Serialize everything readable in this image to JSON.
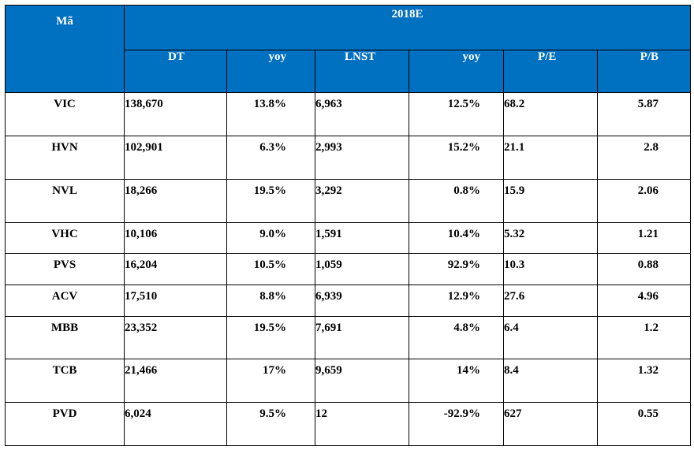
{
  "table": {
    "header": {
      "ma": "Mã",
      "year": "2018E",
      "columns": [
        "DT",
        "yoy",
        "LNST",
        "yoy",
        "P/E",
        "P/B"
      ]
    },
    "rows": [
      {
        "code": "VIC",
        "dt": "138,670",
        "yoy_dt": "13.8%",
        "lnst": "6,963",
        "yoy_lnst": "12.5%",
        "pe": "68.2",
        "pb": "5.87"
      },
      {
        "code": "HVN",
        "dt": "102,901",
        "yoy_dt": "6.3%",
        "lnst": "2,993",
        "yoy_lnst": "15.2%",
        "pe": "21.1",
        "pb": "2.8"
      },
      {
        "code": "NVL",
        "dt": "18,266",
        "yoy_dt": "19.5%",
        "lnst": "3,292",
        "yoy_lnst": "0.8%",
        "pe": "15.9",
        "pb": "2.06"
      },
      {
        "code": "VHC",
        "dt": "10,106",
        "yoy_dt": "9.0%",
        "lnst": "1,591",
        "yoy_lnst": "10.4%",
        "pe": "5.32",
        "pb": "1.21"
      },
      {
        "code": "PVS",
        "dt": "16,204",
        "yoy_dt": "10.5%",
        "lnst": "1,059",
        "yoy_lnst": "92.9%",
        "pe": "10.3",
        "pb": "0.88"
      },
      {
        "code": "ACV",
        "dt": "17,510",
        "yoy_dt": "8.8%",
        "lnst": "6,939",
        "yoy_lnst": "12.9%",
        "pe": "27.6",
        "pb": "4.96"
      },
      {
        "code": "MBB",
        "dt": "23,352",
        "yoy_dt": "19.5%",
        "lnst": "7,691",
        "yoy_lnst": "4.8%",
        "pe": "6.4",
        "pb": "1.2"
      },
      {
        "code": "TCB",
        "dt": "21,466",
        "yoy_dt": "17%",
        "lnst": "9,659",
        "yoy_lnst": "14%",
        "pe": "8.4",
        "pb": "1.32"
      },
      {
        "code": "PVD",
        "dt": "6,024",
        "yoy_dt": "9.5%",
        "lnst": "12",
        "yoy_lnst": "-92.9%",
        "pe": "627",
        "pb": "0.55"
      }
    ]
  }
}
